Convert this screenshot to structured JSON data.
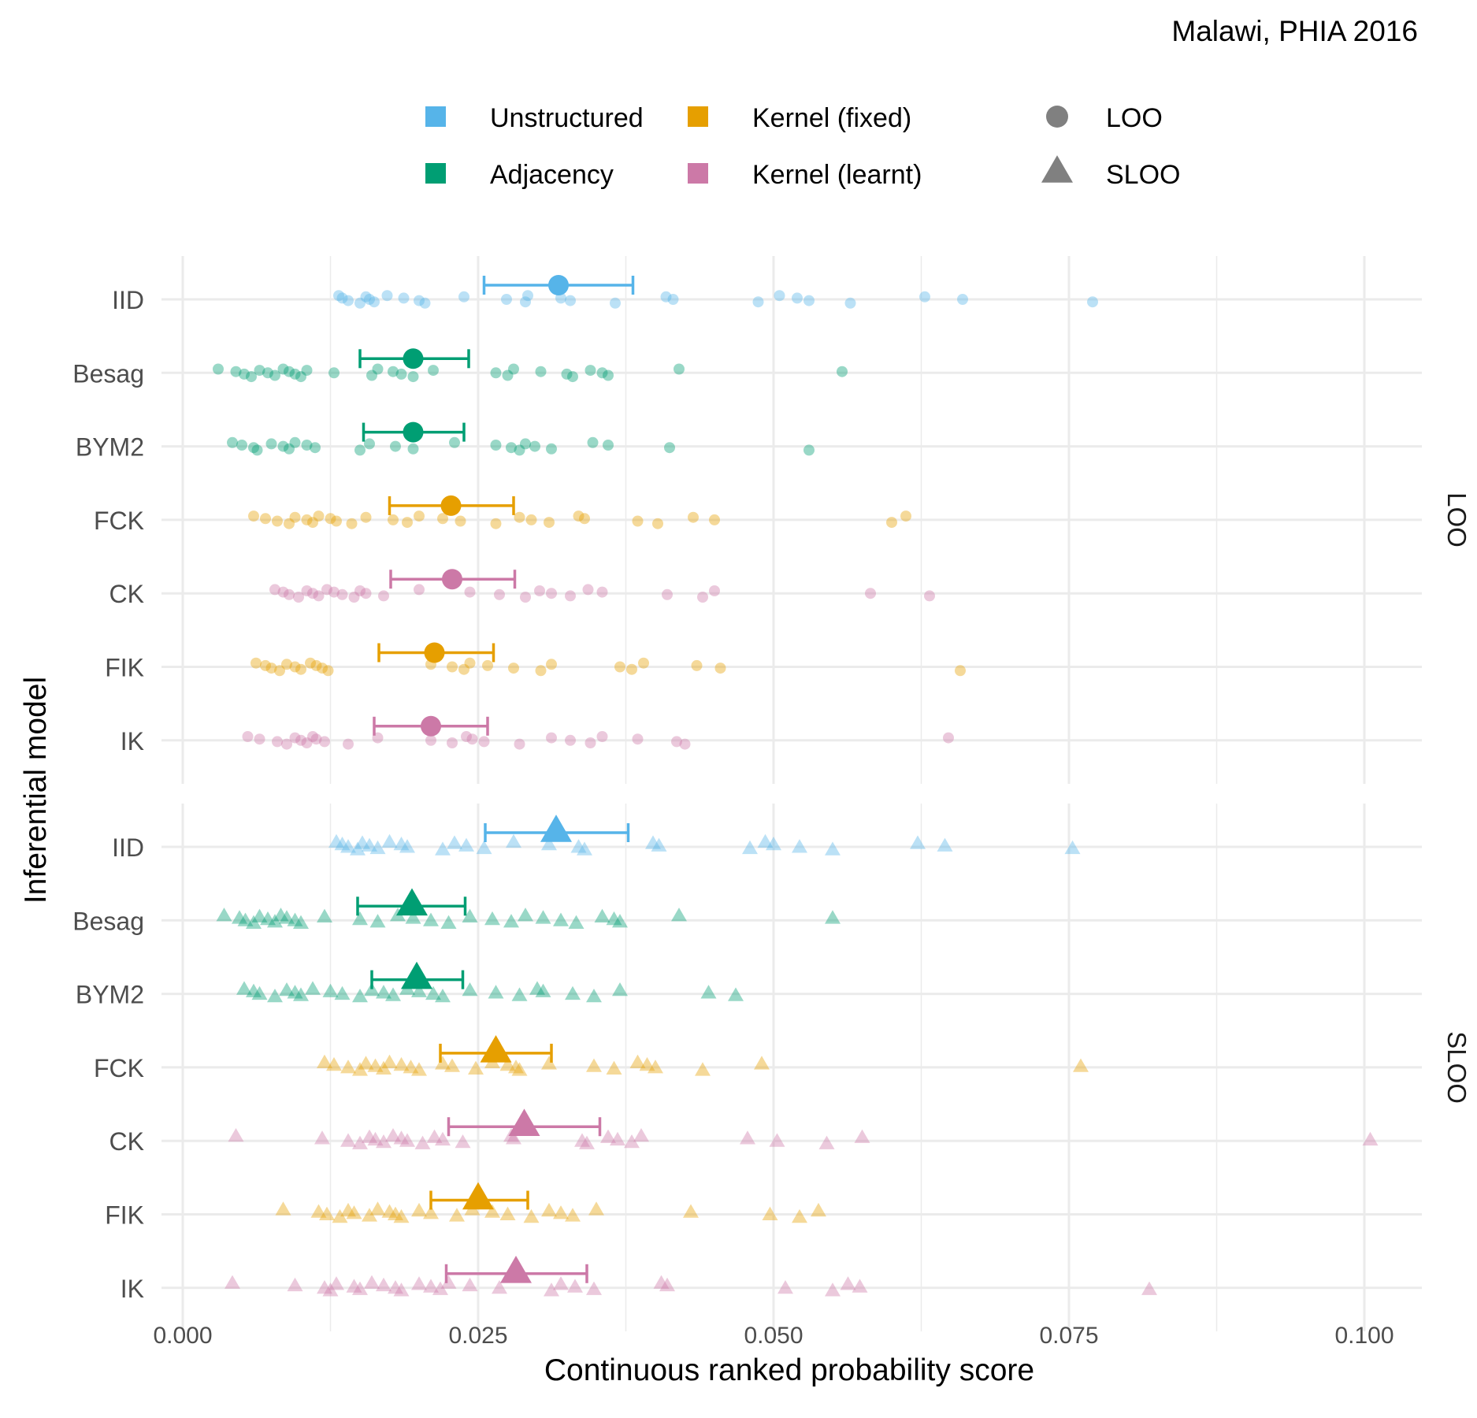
{
  "chart_data": {
    "type": "scatter",
    "title": "Malawi, PHIA 2016",
    "xlabel": "Continuous ranked probability score",
    "ylabel": "Inferential model",
    "xlim": [
      0,
      0.105
    ],
    "xticks": [
      0,
      0.025,
      0.05,
      0.075,
      0.1
    ],
    "xtick_labels": [
      "0.000",
      "0.025",
      "0.050",
      "0.075",
      "0.100"
    ],
    "grid": true,
    "legend_position": "top",
    "legend": {
      "colour": [
        {
          "label": "Unstructured",
          "color": "#56B4E9"
        },
        {
          "label": "Adjacency",
          "color": "#009E73"
        },
        {
          "label": "Kernel (fixed)",
          "color": "#E69F00"
        },
        {
          "label": "Kernel (learnt)",
          "color": "#CC79A7"
        }
      ],
      "shape": [
        {
          "label": "LOO",
          "shape": "circle",
          "color": "#808080"
        },
        {
          "label": "SLOO",
          "shape": "triangle",
          "color": "#808080"
        }
      ]
    },
    "categories": [
      "IID",
      "Besag",
      "BYM2",
      "FCK",
      "CK",
      "FIK",
      "IK"
    ],
    "panels": [
      {
        "label": "LOO",
        "shape": "circle",
        "series": [
          {
            "name": "IID",
            "color": "#56B4E9",
            "mean": 0.0318,
            "lower": 0.0255,
            "upper": 0.0381,
            "points": [
              0.0132,
              0.0135,
              0.014,
              0.015,
              0.0155,
              0.0158,
              0.0162,
              0.0173,
              0.0187,
              0.02,
              0.0205,
              0.0238,
              0.0274,
              0.029,
              0.0292,
              0.032,
              0.0328,
              0.0366,
              0.0409,
              0.0415,
              0.0487,
              0.0505,
              0.052,
              0.053,
              0.0565,
              0.0628,
              0.066,
              0.077
            ]
          },
          {
            "name": "Besag",
            "color": "#009E73",
            "mean": 0.0195,
            "lower": 0.015,
            "upper": 0.0242,
            "points": [
              0.003,
              0.0045,
              0.0052,
              0.0058,
              0.0065,
              0.0072,
              0.0078,
              0.0085,
              0.009,
              0.0095,
              0.01,
              0.0105,
              0.0128,
              0.016,
              0.0165,
              0.0178,
              0.0185,
              0.0195,
              0.0212,
              0.0265,
              0.0275,
              0.028,
              0.0303,
              0.0325,
              0.033,
              0.0345,
              0.0355,
              0.036,
              0.042,
              0.0558
            ]
          },
          {
            "name": "BYM2",
            "color": "#009E73",
            "mean": 0.0195,
            "lower": 0.0153,
            "upper": 0.0238,
            "points": [
              0.0042,
              0.005,
              0.006,
              0.0063,
              0.0075,
              0.0085,
              0.009,
              0.0095,
              0.0105,
              0.0112,
              0.015,
              0.0158,
              0.018,
              0.0195,
              0.023,
              0.0265,
              0.0278,
              0.0285,
              0.029,
              0.0298,
              0.0312,
              0.0347,
              0.036,
              0.0412,
              0.053
            ]
          },
          {
            "name": "FCK",
            "color": "#E69F00",
            "mean": 0.0227,
            "lower": 0.0175,
            "upper": 0.028,
            "points": [
              0.006,
              0.007,
              0.008,
              0.009,
              0.0095,
              0.0105,
              0.011,
              0.0115,
              0.0125,
              0.013,
              0.0143,
              0.0155,
              0.0178,
              0.019,
              0.02,
              0.022,
              0.0235,
              0.0265,
              0.0285,
              0.0295,
              0.031,
              0.0335,
              0.034,
              0.0385,
              0.0402,
              0.0432,
              0.045,
              0.06,
              0.0612
            ]
          },
          {
            "name": "CK",
            "color": "#CC79A7",
            "mean": 0.0228,
            "lower": 0.0176,
            "upper": 0.0281,
            "points": [
              0.0078,
              0.0085,
              0.009,
              0.0098,
              0.0105,
              0.011,
              0.0115,
              0.0122,
              0.0128,
              0.0135,
              0.0145,
              0.015,
              0.0155,
              0.017,
              0.02,
              0.0243,
              0.0268,
              0.029,
              0.0302,
              0.0312,
              0.0328,
              0.0343,
              0.0355,
              0.041,
              0.044,
              0.045,
              0.0582,
              0.0632
            ]
          },
          {
            "name": "FIK",
            "color": "#E69F00",
            "mean": 0.0213,
            "lower": 0.0166,
            "upper": 0.0263,
            "points": [
              0.0062,
              0.007,
              0.0075,
              0.0082,
              0.0088,
              0.0095,
              0.01,
              0.0108,
              0.0113,
              0.0118,
              0.0123,
              0.021,
              0.0228,
              0.0238,
              0.0243,
              0.0258,
              0.028,
              0.0303,
              0.0312,
              0.037,
              0.038,
              0.039,
              0.0435,
              0.0455,
              0.0658
            ]
          },
          {
            "name": "IK",
            "color": "#CC79A7",
            "mean": 0.021,
            "lower": 0.0162,
            "upper": 0.0258,
            "points": [
              0.0055,
              0.0065,
              0.008,
              0.0088,
              0.0095,
              0.01,
              0.0105,
              0.011,
              0.0113,
              0.012,
              0.014,
              0.0165,
              0.021,
              0.0228,
              0.024,
              0.0245,
              0.0255,
              0.0285,
              0.0312,
              0.0328,
              0.0345,
              0.0355,
              0.0385,
              0.0418,
              0.0425,
              0.0648
            ]
          }
        ]
      },
      {
        "label": "SLOO",
        "shape": "triangle",
        "series": [
          {
            "name": "IID",
            "color": "#56B4E9",
            "mean": 0.0316,
            "lower": 0.0256,
            "upper": 0.0377,
            "points": [
              0.013,
              0.0135,
              0.014,
              0.0148,
              0.0152,
              0.0158,
              0.0165,
              0.0175,
              0.0185,
              0.019,
              0.022,
              0.023,
              0.024,
              0.0255,
              0.028,
              0.031,
              0.0335,
              0.034,
              0.0398,
              0.0403,
              0.048,
              0.0493,
              0.05,
              0.0522,
              0.055,
              0.0622,
              0.0645,
              0.0753
            ]
          },
          {
            "name": "Besag",
            "color": "#009E73",
            "mean": 0.0194,
            "lower": 0.0148,
            "upper": 0.0239,
            "points": [
              0.0035,
              0.0048,
              0.0053,
              0.006,
              0.0065,
              0.0072,
              0.0078,
              0.0083,
              0.0088,
              0.0095,
              0.01,
              0.012,
              0.015,
              0.0165,
              0.0182,
              0.0195,
              0.021,
              0.0225,
              0.0243,
              0.0262,
              0.0278,
              0.029,
              0.0305,
              0.032,
              0.0333,
              0.0355,
              0.0365,
              0.037,
              0.042,
              0.055
            ]
          },
          {
            "name": "BYM2",
            "color": "#009E73",
            "mean": 0.0198,
            "lower": 0.016,
            "upper": 0.0237,
            "points": [
              0.0052,
              0.006,
              0.0065,
              0.0078,
              0.0088,
              0.0095,
              0.01,
              0.011,
              0.0125,
              0.0135,
              0.015,
              0.016,
              0.017,
              0.0178,
              0.019,
              0.02,
              0.0212,
              0.022,
              0.0243,
              0.0265,
              0.0285,
              0.03,
              0.0305,
              0.033,
              0.0348,
              0.037,
              0.0445,
              0.0468
            ]
          },
          {
            "name": "FCK",
            "color": "#E69F00",
            "mean": 0.0265,
            "lower": 0.0218,
            "upper": 0.0312,
            "points": [
              0.012,
              0.0128,
              0.014,
              0.015,
              0.0155,
              0.0163,
              0.017,
              0.0175,
              0.0185,
              0.0193,
              0.02,
              0.022,
              0.0228,
              0.0248,
              0.0262,
              0.0275,
              0.0282,
              0.0285,
              0.031,
              0.0348,
              0.0365,
              0.0385,
              0.0393,
              0.04,
              0.044,
              0.049,
              0.076
            ]
          },
          {
            "name": "CK",
            "color": "#CC79A7",
            "mean": 0.0289,
            "lower": 0.0225,
            "upper": 0.0353,
            "points": [
              0.0045,
              0.0118,
              0.014,
              0.015,
              0.0158,
              0.0163,
              0.017,
              0.0178,
              0.0185,
              0.019,
              0.0203,
              0.0213,
              0.022,
              0.0237,
              0.0278,
              0.028,
              0.0338,
              0.0342,
              0.036,
              0.0368,
              0.038,
              0.0388,
              0.0478,
              0.0503,
              0.0545,
              0.0575,
              0.1005
            ]
          },
          {
            "name": "FIK",
            "color": "#E69F00",
            "mean": 0.025,
            "lower": 0.021,
            "upper": 0.0292,
            "points": [
              0.0085,
              0.0115,
              0.0122,
              0.0133,
              0.014,
              0.0145,
              0.0158,
              0.0165,
              0.0175,
              0.018,
              0.0185,
              0.02,
              0.021,
              0.0232,
              0.0245,
              0.0262,
              0.0275,
              0.0295,
              0.031,
              0.032,
              0.033,
              0.035,
              0.043,
              0.0497,
              0.0522,
              0.0538
            ]
          },
          {
            "name": "IK",
            "color": "#CC79A7",
            "mean": 0.0282,
            "lower": 0.0223,
            "upper": 0.0342,
            "points": [
              0.0042,
              0.0095,
              0.012,
              0.0125,
              0.013,
              0.0145,
              0.015,
              0.016,
              0.017,
              0.018,
              0.0185,
              0.02,
              0.021,
              0.0218,
              0.0225,
              0.0243,
              0.0268,
              0.0312,
              0.032,
              0.0332,
              0.0348,
              0.0405,
              0.041,
              0.051,
              0.055,
              0.0563,
              0.0573,
              0.0818
            ]
          }
        ]
      }
    ]
  }
}
